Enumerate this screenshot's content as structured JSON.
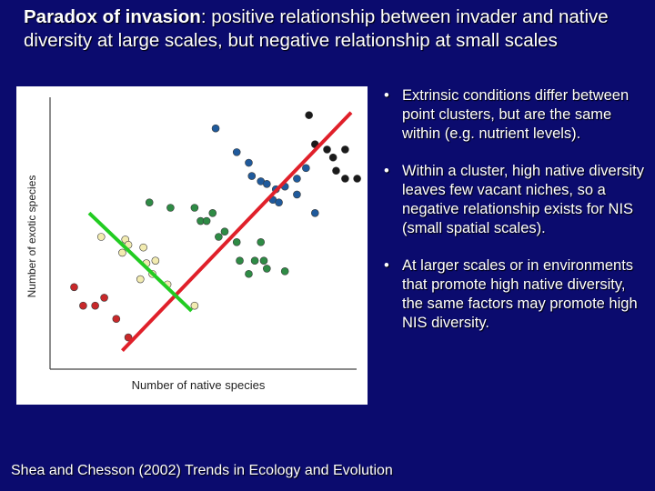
{
  "title": {
    "bold": "Paradox of invasion",
    "rest": ":  positive relationship between invader and native diversity at large scales, but negative relationship at small scales"
  },
  "bullets": [
    {
      "marker": "•",
      "text": "Extrinsic conditions differ between point clusters, but are the same within (e.g. nutrient levels)."
    },
    {
      "marker": "•",
      "text": "Within a cluster, high native diversity leaves few vacant niches, so a negative relationship exists for NIS (small spatial scales)."
    },
    {
      "marker": "•",
      "text": "At larger scales or in environments that promote high native diversity, the same factors may promote high NIS diversity."
    }
  ],
  "citation": "Shea and Chesson (2002) Trends in Ecology and Evolution",
  "colors": {
    "background": "#0b0b6e",
    "red": "#c8282a",
    "green": "#2e8b45",
    "yellow": "#f2ebb0",
    "blue": "#1f5a9c",
    "black": "#1a1a1a",
    "line_red": "#e0202a",
    "line_green": "#22cc22"
  },
  "chart_data": {
    "type": "scatter",
    "xlabel": "Number of native species",
    "ylabel": "Number of exotic species",
    "xlim": [
      0,
      100
    ],
    "ylim": [
      0,
      100
    ],
    "grid": false,
    "series": [
      {
        "name": "red",
        "color": "#c8282a",
        "points": [
          [
            8,
            31
          ],
          [
            11,
            24
          ],
          [
            15,
            24
          ],
          [
            18,
            27
          ],
          [
            22,
            19
          ],
          [
            26,
            12
          ]
        ]
      },
      {
        "name": "yellow",
        "color": "#f2ebb0",
        "points": [
          [
            17,
            50
          ],
          [
            24,
            44
          ],
          [
            25,
            49
          ],
          [
            26,
            47
          ],
          [
            31,
            46
          ],
          [
            32,
            40
          ],
          [
            34,
            36
          ],
          [
            35,
            41
          ],
          [
            39,
            32
          ],
          [
            48,
            24
          ],
          [
            30,
            34
          ]
        ]
      },
      {
        "name": "green",
        "color": "#2e8b45",
        "points": [
          [
            33,
            63
          ],
          [
            40,
            61
          ],
          [
            48,
            61
          ],
          [
            50,
            56
          ],
          [
            52,
            56
          ],
          [
            54,
            59
          ],
          [
            56,
            50
          ],
          [
            58,
            52
          ],
          [
            62,
            48
          ],
          [
            63,
            41
          ],
          [
            66,
            36
          ],
          [
            68,
            41
          ],
          [
            70,
            48
          ],
          [
            71,
            41
          ],
          [
            72,
            38
          ],
          [
            78,
            37
          ]
        ]
      },
      {
        "name": "blue",
        "color": "#1f5a9c",
        "points": [
          [
            55,
            91
          ],
          [
            62,
            82
          ],
          [
            66,
            78
          ],
          [
            67,
            73
          ],
          [
            70,
            71
          ],
          [
            72,
            70
          ],
          [
            74,
            64
          ],
          [
            75,
            68
          ],
          [
            76,
            63
          ],
          [
            78,
            69
          ],
          [
            82,
            66
          ],
          [
            82,
            72
          ],
          [
            85,
            76
          ],
          [
            88,
            59
          ]
        ]
      },
      {
        "name": "black",
        "color": "#1a1a1a",
        "points": [
          [
            86,
            96
          ],
          [
            88,
            85
          ],
          [
            92,
            83
          ],
          [
            94,
            80
          ],
          [
            95,
            75
          ],
          [
            98,
            83
          ],
          [
            98,
            72
          ],
          [
            102,
            72
          ]
        ]
      }
    ],
    "trend_lines": [
      {
        "name": "large-scale positive trend",
        "color": "#e0202a",
        "from": [
          24,
          7
        ],
        "to": [
          100,
          97
        ]
      },
      {
        "name": "small-scale negative trend",
        "color": "#22cc22",
        "from": [
          13,
          59
        ],
        "to": [
          47,
          22
        ]
      }
    ]
  }
}
